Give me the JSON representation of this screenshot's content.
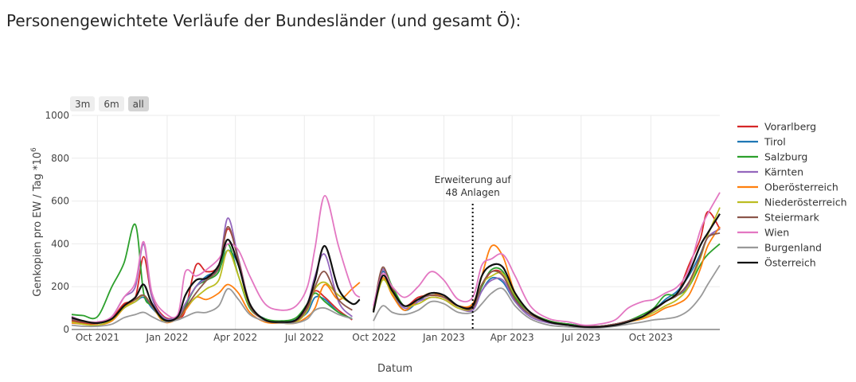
{
  "page": {
    "heading": "Personengewichtete Verläufe der Bundesländer (und gesamt Ö):"
  },
  "range_selector": {
    "buttons": [
      {
        "label": "3m",
        "active": false
      },
      {
        "label": "6m",
        "active": false
      },
      {
        "label": "all",
        "active": true
      }
    ]
  },
  "chart_data": {
    "type": "line",
    "title": "",
    "xlabel": "Datum",
    "ylabel": "Genkopien pro EW / Tag *10",
    "ylabel_exponent": "6",
    "ylim": [
      0,
      1000
    ],
    "yticks": [
      0,
      200,
      400,
      600,
      800,
      1000
    ],
    "xlim": [
      "2021-08-28",
      "2023-12-31"
    ],
    "xticks": [
      {
        "date": "2021-10-01",
        "label": "Oct 2021"
      },
      {
        "date": "2022-01-01",
        "label": "Jan 2022"
      },
      {
        "date": "2022-04-01",
        "label": "Apr 2022"
      },
      {
        "date": "2022-07-01",
        "label": "Jul 2022"
      },
      {
        "date": "2022-10-01",
        "label": "Oct 2022"
      },
      {
        "date": "2023-01-01",
        "label": "Jan 2023"
      },
      {
        "date": "2023-04-01",
        "label": "Apr 2023"
      },
      {
        "date": "2023-07-01",
        "label": "Jul 2023"
      },
      {
        "date": "2023-10-01",
        "label": "Oct 2023"
      }
    ],
    "grid": true,
    "legend_position": "right",
    "annotation": {
      "date": "2023-02-08",
      "line1": "Erweiterung auf",
      "line2": "48 Anlagen"
    },
    "dates": [
      "2021-08-28",
      "2021-09-12",
      "2021-10-01",
      "2021-10-20",
      "2021-11-05",
      "2021-11-20",
      "2021-12-01",
      "2021-12-12",
      "2021-12-28",
      "2022-01-15",
      "2022-01-25",
      "2022-02-08",
      "2022-02-22",
      "2022-03-10",
      "2022-03-22",
      "2022-04-05",
      "2022-04-20",
      "2022-05-10",
      "2022-06-01",
      "2022-06-20",
      "2022-07-05",
      "2022-07-15",
      "2022-07-28",
      "2022-08-15",
      "2022-09-02",
      "2022-09-12",
      "2022-09-20",
      "2022-09-30",
      "2022-10-12",
      "2022-10-25",
      "2022-11-10",
      "2022-11-28",
      "2022-12-15",
      "2023-01-01",
      "2023-01-20",
      "2023-02-08",
      "2023-02-20",
      "2023-03-05",
      "2023-03-20",
      "2023-04-05",
      "2023-04-25",
      "2023-05-20",
      "2023-06-15",
      "2023-07-05",
      "2023-07-25",
      "2023-08-15",
      "2023-09-01",
      "2023-09-20",
      "2023-10-05",
      "2023-10-20",
      "2023-11-05",
      "2023-11-20",
      "2023-12-05",
      "2023-12-15",
      "2023-12-31"
    ],
    "series": [
      {
        "name": "Vorarlberg",
        "color": "#d62728",
        "values": [
          40,
          30,
          28,
          55,
          120,
          150,
          340,
          150,
          60,
          55,
          90,
          300,
          270,
          300,
          470,
          330,
          120,
          45,
          35,
          45,
          110,
          180,
          150,
          90,
          45,
          null,
          null,
          90,
          270,
          190,
          110,
          150,
          160,
          150,
          110,
          110,
          200,
          270,
          260,
          150,
          80,
          40,
          25,
          15,
          15,
          25,
          40,
          60,
          90,
          130,
          170,
          300,
          420,
          550,
          470
        ]
      },
      {
        "name": "Tirol",
        "color": "#1f77b4",
        "values": [
          60,
          40,
          30,
          50,
          100,
          130,
          150,
          100,
          50,
          60,
          120,
          200,
          250,
          280,
          370,
          300,
          110,
          50,
          35,
          45,
          80,
          150,
          140,
          80,
          50,
          null,
          null,
          90,
          270,
          170,
          90,
          130,
          170,
          160,
          110,
          100,
          180,
          240,
          220,
          130,
          70,
          35,
          25,
          15,
          15,
          25,
          40,
          60,
          90,
          140,
          180,
          250,
          350,
          430,
          470
        ]
      },
      {
        "name": "Salzburg",
        "color": "#2ca02c",
        "values": [
          70,
          65,
          60,
          200,
          310,
          490,
          170,
          110,
          50,
          60,
          110,
          200,
          230,
          270,
          400,
          250,
          100,
          50,
          40,
          55,
          120,
          170,
          130,
          80,
          50,
          null,
          null,
          90,
          280,
          200,
          110,
          140,
          170,
          150,
          110,
          100,
          200,
          280,
          270,
          150,
          80,
          40,
          25,
          15,
          15,
          25,
          40,
          70,
          100,
          160,
          160,
          200,
          300,
          350,
          400
        ]
      },
      {
        "name": "Kärnten",
        "color": "#9467bd",
        "values": [
          50,
          40,
          30,
          60,
          150,
          200,
          400,
          150,
          55,
          60,
          120,
          200,
          240,
          290,
          520,
          330,
          120,
          45,
          35,
          45,
          120,
          250,
          350,
          130,
          60,
          null,
          null,
          90,
          280,
          180,
          100,
          130,
          150,
          140,
          100,
          90,
          180,
          230,
          230,
          130,
          60,
          30,
          20,
          15,
          15,
          25,
          40,
          60,
          90,
          130,
          160,
          210,
          330,
          430,
          470
        ]
      },
      {
        "name": "Oberösterreich",
        "color": "#ff7f0e",
        "values": [
          30,
          25,
          20,
          40,
          100,
          140,
          160,
          110,
          35,
          50,
          90,
          150,
          140,
          170,
          210,
          170,
          80,
          35,
          30,
          30,
          60,
          100,
          210,
          140,
          190,
          220,
          null,
          90,
          240,
          160,
          90,
          140,
          170,
          150,
          110,
          120,
          250,
          390,
          340,
          170,
          80,
          35,
          20,
          12,
          12,
          20,
          35,
          50,
          70,
          100,
          120,
          160,
          280,
          390,
          480
        ]
      },
      {
        "name": "Niederösterreich",
        "color": "#bcbd22",
        "values": [
          35,
          25,
          20,
          45,
          100,
          130,
          160,
          110,
          40,
          50,
          100,
          150,
          190,
          230,
          370,
          250,
          110,
          45,
          30,
          35,
          90,
          190,
          220,
          160,
          120,
          null,
          null,
          80,
          230,
          170,
          110,
          120,
          150,
          140,
          100,
          100,
          210,
          250,
          260,
          160,
          80,
          35,
          20,
          12,
          12,
          20,
          35,
          55,
          80,
          110,
          140,
          200,
          330,
          440,
          570
        ]
      },
      {
        "name": "Steiermark",
        "color": "#8c564b",
        "values": [
          45,
          35,
          30,
          50,
          110,
          140,
          160,
          110,
          45,
          50,
          100,
          170,
          230,
          290,
          480,
          320,
          110,
          45,
          35,
          40,
          100,
          200,
          270,
          140,
          90,
          null,
          null,
          90,
          290,
          180,
          110,
          140,
          160,
          150,
          110,
          100,
          210,
          270,
          250,
          140,
          70,
          35,
          20,
          15,
          15,
          25,
          40,
          60,
          90,
          130,
          160,
          220,
          340,
          430,
          450
        ]
      },
      {
        "name": "Wien",
        "color": "#e377c2",
        "values": [
          60,
          40,
          35,
          60,
          150,
          220,
          410,
          170,
          80,
          70,
          270,
          250,
          280,
          330,
          400,
          370,
          250,
          120,
          90,
          110,
          200,
          380,
          625,
          390,
          190,
          150,
          null,
          110,
          260,
          200,
          150,
          200,
          270,
          230,
          140,
          150,
          300,
          330,
          350,
          250,
          110,
          50,
          35,
          20,
          25,
          45,
          100,
          130,
          140,
          170,
          200,
          280,
          460,
          540,
          640
        ]
      },
      {
        "name": "Burgenland",
        "color": "#999999",
        "values": [
          20,
          15,
          15,
          25,
          55,
          70,
          80,
          60,
          35,
          45,
          60,
          80,
          80,
          110,
          190,
          140,
          70,
          40,
          30,
          30,
          50,
          90,
          100,
          70,
          50,
          null,
          null,
          40,
          110,
          80,
          70,
          90,
          130,
          120,
          80,
          80,
          120,
          170,
          190,
          110,
          50,
          20,
          12,
          8,
          8,
          15,
          25,
          35,
          45,
          50,
          60,
          90,
          150,
          210,
          300
        ]
      },
      {
        "name": "Österreich",
        "color": "#111111",
        "values": [
          55,
          40,
          30,
          50,
          110,
          150,
          210,
          120,
          45,
          60,
          160,
          230,
          240,
          300,
          420,
          300,
          120,
          45,
          35,
          45,
          120,
          230,
          390,
          190,
          120,
          140,
          null,
          80,
          250,
          180,
          110,
          140,
          170,
          160,
          110,
          110,
          250,
          300,
          290,
          170,
          80,
          35,
          20,
          12,
          12,
          20,
          35,
          60,
          95,
          130,
          170,
          260,
          390,
          450,
          540
        ]
      }
    ]
  }
}
